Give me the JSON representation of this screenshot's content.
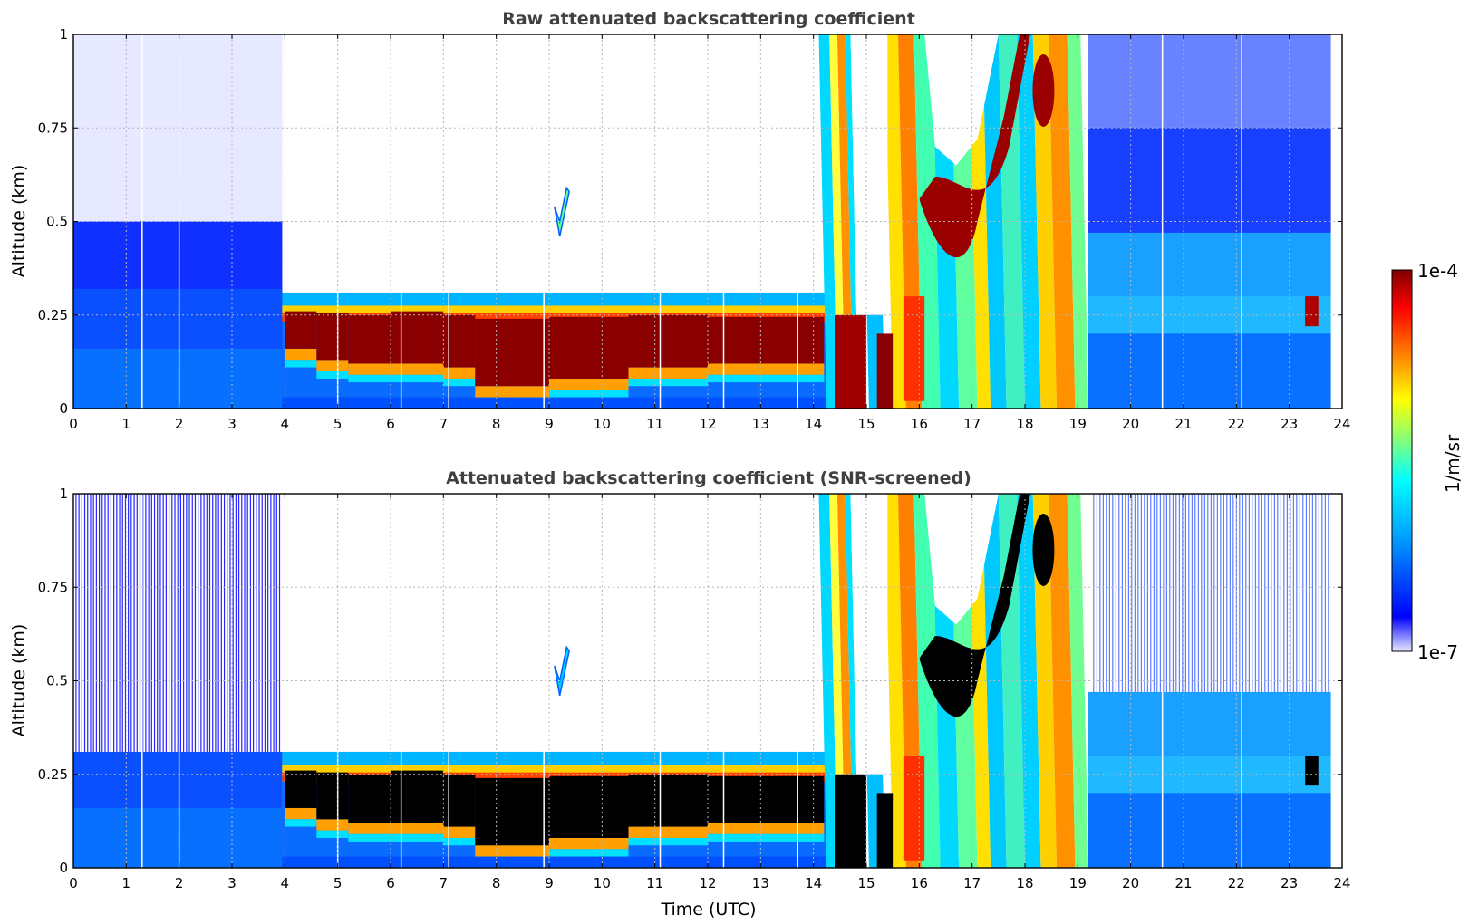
{
  "chart_data": [
    {
      "type": "heatmap",
      "title": "Raw attenuated backscattering coefficient",
      "xlabel": "",
      "ylabel": "Altitude (km)",
      "xlim": [
        0,
        24
      ],
      "ylim": [
        0,
        1
      ],
      "x_ticks": [
        "0",
        "1",
        "2",
        "3",
        "4",
        "5",
        "6",
        "7",
        "8",
        "9",
        "10",
        "11",
        "12",
        "13",
        "14",
        "15",
        "16",
        "17",
        "18",
        "19",
        "20",
        "21",
        "22",
        "23",
        "24"
      ],
      "y_ticks": [
        "0",
        "0.25",
        "0.5",
        "0.75",
        "1"
      ],
      "grid": true,
      "screened": false,
      "layers": [
        {
          "name": "night background noise",
          "x_range": [
            0,
            4
          ],
          "y_range": [
            0,
            1
          ],
          "level": "low"
        },
        {
          "name": "aerosol layer",
          "x_range": [
            4,
            14.2
          ],
          "top_km": 0.3,
          "core_km": [
            0.12,
            0.25
          ],
          "level": "high"
        },
        {
          "name": "isolated feature",
          "x": 9.2,
          "y": 0.5,
          "level": "medium"
        },
        {
          "name": "precipitation streaks",
          "x_range": [
            14.2,
            19.2
          ],
          "y_range": [
            0,
            1
          ],
          "level": "high"
        },
        {
          "name": "evening background",
          "x_range": [
            19.2,
            23.8
          ],
          "y_range": [
            0,
            1
          ],
          "level": "low"
        },
        {
          "name": "small layer",
          "x": 23.4,
          "y": 0.27,
          "level": "high"
        }
      ]
    },
    {
      "type": "heatmap",
      "title": "Attenuated backscattering coefficient (SNR-screened)",
      "xlabel": "Time (UTC)",
      "ylabel": "Altitude (km)",
      "xlim": [
        0,
        24
      ],
      "ylim": [
        0,
        1
      ],
      "x_ticks": [
        "0",
        "1",
        "2",
        "3",
        "4",
        "5",
        "6",
        "7",
        "8",
        "9",
        "10",
        "11",
        "12",
        "13",
        "14",
        "15",
        "16",
        "17",
        "18",
        "19",
        "20",
        "21",
        "22",
        "23",
        "24"
      ],
      "y_ticks": [
        "0",
        "0.25",
        "0.5",
        "0.75",
        "1"
      ],
      "grid": true,
      "screened": true,
      "saturated_color": "#000000",
      "layers": [
        {
          "name": "boundary layer",
          "x_range": [
            0,
            4
          ],
          "top_km": 0.3,
          "level": "low"
        },
        {
          "name": "aerosol layer",
          "x_range": [
            4,
            14.2
          ],
          "top_km": 0.3,
          "core_km": [
            0.12,
            0.25
          ],
          "level": "saturated"
        },
        {
          "name": "isolated feature",
          "x": 9.2,
          "y": 0.5,
          "level": "medium"
        },
        {
          "name": "precipitation streaks",
          "x_range": [
            14.2,
            19.2
          ],
          "y_range": [
            0,
            1
          ],
          "level": "high"
        },
        {
          "name": "evening layer",
          "x_range": [
            19.2,
            23.8
          ],
          "top_km": 0.47,
          "level": "low"
        }
      ]
    }
  ],
  "colorbar": {
    "label": "1/m/sr",
    "max_label": "1e-4",
    "min_label": "1e-7",
    "colormap": [
      "#e8e8ff",
      "#0000ff",
      "#00a0ff",
      "#00ffff",
      "#7fff7f",
      "#ffff00",
      "#ff8000",
      "#ff0000",
      "#800000"
    ]
  }
}
